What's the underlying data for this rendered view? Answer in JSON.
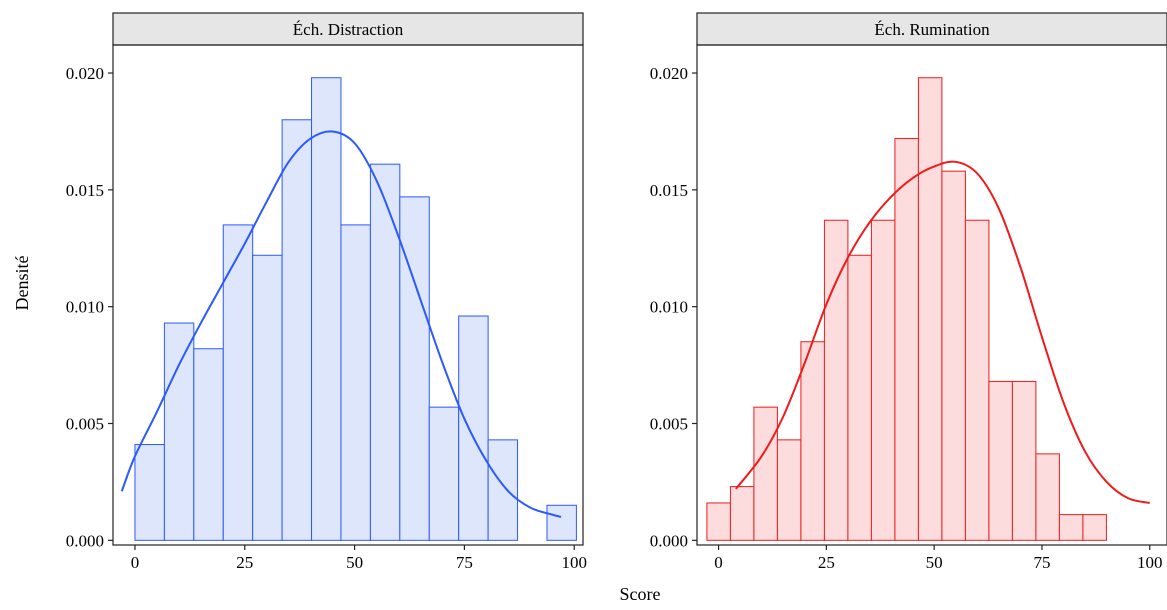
{
  "chart_data": [
    {
      "type": "bar",
      "panel_title": "Éch. Distraction",
      "color": "#2b59ff",
      "fill": "#dde6fb",
      "bin_width": 6.7,
      "bins": [
        {
          "start": 0.0,
          "density": 0.0041
        },
        {
          "start": 6.7,
          "density": 0.0093
        },
        {
          "start": 13.4,
          "density": 0.0082
        },
        {
          "start": 20.1,
          "density": 0.0135
        },
        {
          "start": 26.8,
          "density": 0.0122
        },
        {
          "start": 33.5,
          "density": 0.018
        },
        {
          "start": 40.2,
          "density": 0.0198
        },
        {
          "start": 46.9,
          "density": 0.0135
        },
        {
          "start": 53.6,
          "density": 0.0161
        },
        {
          "start": 60.3,
          "density": 0.0147
        },
        {
          "start": 67.0,
          "density": 0.0057
        },
        {
          "start": 73.7,
          "density": 0.0096
        },
        {
          "start": 80.4,
          "density": 0.0043
        },
        {
          "start": 87.1,
          "density": 0.0
        },
        {
          "start": 93.8,
          "density": 0.0015
        }
      ],
      "density_curve": {
        "x": [
          -3,
          0,
          5,
          10,
          15,
          20,
          25,
          30,
          35,
          40,
          45,
          50,
          55,
          60,
          65,
          70,
          75,
          80,
          85,
          90,
          95,
          97
        ],
        "y": [
          0.0021,
          0.0036,
          0.0055,
          0.0075,
          0.0093,
          0.011,
          0.0127,
          0.0145,
          0.0162,
          0.0172,
          0.0175,
          0.017,
          0.0154,
          0.013,
          0.0103,
          0.0076,
          0.0052,
          0.0034,
          0.0021,
          0.0014,
          0.0011,
          0.001
        ]
      },
      "xlim": [
        -5,
        102
      ],
      "ylim": [
        -0.0002,
        0.0212
      ],
      "x_ticks": [
        0,
        25,
        50,
        75,
        100
      ],
      "y_ticks": [
        0.0,
        0.005,
        0.01,
        0.015,
        0.02
      ],
      "x_tick_labels": [
        "0",
        "25",
        "50",
        "75",
        "100"
      ],
      "y_tick_labels": [
        "0.000",
        "0.005",
        "0.010",
        "0.015",
        "0.020"
      ]
    },
    {
      "type": "bar",
      "panel_title": "Éch. Rumination",
      "color": "#f01a1a",
      "fill": "#fcdcdc",
      "bin_width": 5.45,
      "bins": [
        {
          "start": -2.7,
          "density": 0.0016
        },
        {
          "start": 2.75,
          "density": 0.0023
        },
        {
          "start": 8.2,
          "density": 0.0057
        },
        {
          "start": 13.65,
          "density": 0.0043
        },
        {
          "start": 19.1,
          "density": 0.0085
        },
        {
          "start": 24.55,
          "density": 0.0137
        },
        {
          "start": 30.0,
          "density": 0.0122
        },
        {
          "start": 35.45,
          "density": 0.0137
        },
        {
          "start": 40.9,
          "density": 0.0172
        },
        {
          "start": 46.35,
          "density": 0.0198
        },
        {
          "start": 51.8,
          "density": 0.0158
        },
        {
          "start": 57.25,
          "density": 0.0137
        },
        {
          "start": 62.7,
          "density": 0.0068
        },
        {
          "start": 68.15,
          "density": 0.0068
        },
        {
          "start": 73.6,
          "density": 0.0037
        },
        {
          "start": 79.05,
          "density": 0.0011
        },
        {
          "start": 84.5,
          "density": 0.0011
        }
      ],
      "density_curve": {
        "x": [
          4,
          10,
          15,
          20,
          25,
          30,
          35,
          40,
          45,
          50,
          55,
          60,
          65,
          70,
          75,
          80,
          85,
          90,
          95,
          100
        ],
        "y": [
          0.0022,
          0.0036,
          0.0053,
          0.0076,
          0.0101,
          0.0121,
          0.0136,
          0.0147,
          0.0155,
          0.016,
          0.0162,
          0.0157,
          0.0142,
          0.0117,
          0.0087,
          0.0059,
          0.0038,
          0.0025,
          0.0018,
          0.0016
        ]
      },
      "xlim": [
        -5,
        104
      ],
      "ylim": [
        -0.0002,
        0.0212
      ],
      "x_ticks": [
        0,
        25,
        50,
        75,
        100
      ],
      "y_ticks": [
        0.0,
        0.005,
        0.01,
        0.015,
        0.02
      ],
      "x_tick_labels": [
        "0",
        "25",
        "50",
        "75",
        "100"
      ],
      "y_tick_labels": [
        "0.000",
        "0.005",
        "0.010",
        "0.015",
        "0.020"
      ]
    }
  ],
  "axes": {
    "xlabel": "Score",
    "ylabel": "Densité"
  },
  "style": {
    "strip_fill": "#e6e6e6",
    "axis_color": "#222222"
  }
}
